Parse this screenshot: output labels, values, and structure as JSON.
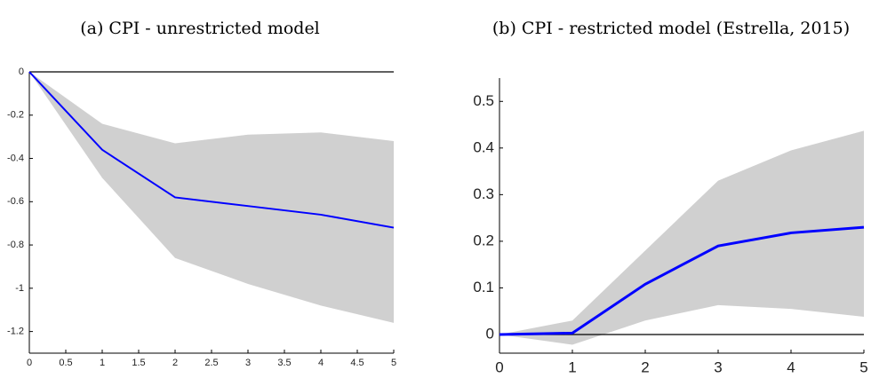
{
  "chart_data": [
    {
      "type": "line",
      "title": "(a) CPI - unrestricted model",
      "x": [
        0,
        1,
        2,
        3,
        4,
        5
      ],
      "series": [
        {
          "color": "#0000ff",
          "values": [
            0,
            -0.36,
            -0.58,
            -0.62,
            -0.66,
            -0.72
          ]
        }
      ],
      "band": {
        "color": "#d0d0d0",
        "upper": [
          0,
          -0.24,
          -0.33,
          -0.29,
          -0.28,
          -0.32
        ],
        "lower": [
          0,
          -0.49,
          -0.86,
          -0.98,
          -1.08,
          -1.16
        ]
      },
      "hline": 0,
      "xlim": [
        0,
        5
      ],
      "xticks": [
        0,
        0.5,
        1,
        1.5,
        2,
        2.5,
        3,
        3.5,
        4,
        4.5,
        5
      ],
      "ylim": [
        -1.3,
        0
      ],
      "yticks": [
        0,
        -0.2,
        -0.4,
        -0.6,
        -0.8,
        -1,
        -1.2
      ]
    },
    {
      "type": "line",
      "title": "(b) CPI - restricted model (Estrella, 2015)",
      "x": [
        0,
        1,
        2,
        3,
        4,
        5
      ],
      "series": [
        {
          "color": "#0000ff",
          "values": [
            0,
            0.003,
            0.108,
            0.19,
            0.218,
            0.23
          ]
        }
      ],
      "band": {
        "color": "#d0d0d0",
        "upper": [
          0,
          0.03,
          0.18,
          0.33,
          0.395,
          0.437
        ],
        "lower": [
          0,
          -0.022,
          0.03,
          0.063,
          0.055,
          0.038
        ]
      },
      "hline": 0,
      "xlim": [
        0,
        5
      ],
      "xticks": [
        0,
        1,
        2,
        3,
        4,
        5
      ],
      "ylim": [
        -0.04,
        0.55
      ],
      "yticks": [
        0,
        0.1,
        0.2,
        0.3,
        0.4,
        0.5
      ]
    }
  ]
}
